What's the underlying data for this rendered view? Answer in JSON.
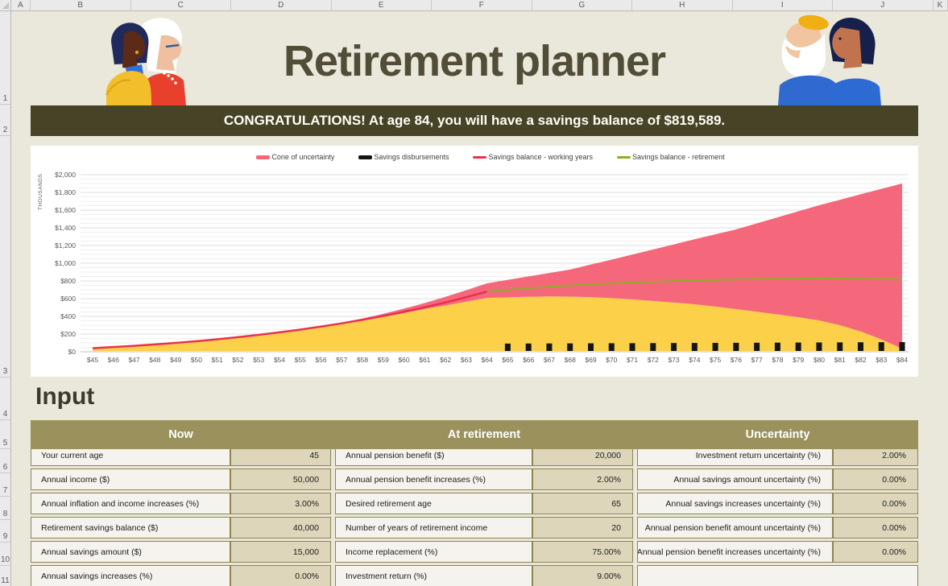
{
  "spreadsheet": {
    "columns": [
      "A",
      "B",
      "C",
      "D",
      "E",
      "F",
      "G",
      "H",
      "I",
      "J",
      "K"
    ],
    "rows": [
      "1",
      "2",
      "3",
      "4",
      "5",
      "6",
      "7",
      "8",
      "9",
      "10",
      "11"
    ]
  },
  "header": {
    "title": "Retirement planner"
  },
  "banner": {
    "text": "CONGRATULATIONS! At age 84, you will have a savings balance of $819,589."
  },
  "chart_data": {
    "type": "area",
    "title": "",
    "y_axis_title": "THOUSANDS",
    "ylim": [
      0,
      2000
    ],
    "y_major_step": 200,
    "y_minor_step": 50,
    "x_label_prefix": "$",
    "ages": [
      45,
      46,
      47,
      48,
      49,
      50,
      51,
      52,
      53,
      54,
      55,
      56,
      57,
      58,
      59,
      60,
      61,
      62,
      63,
      64,
      65,
      66,
      67,
      68,
      69,
      70,
      71,
      72,
      73,
      74,
      75,
      76,
      77,
      78,
      79,
      80,
      81,
      82,
      83,
      84
    ],
    "cone": {
      "name": "Cone of uncertainty",
      "color": "#f5687b",
      "lower": [
        40,
        53,
        67,
        83,
        100,
        119,
        141,
        164,
        189,
        216,
        246,
        278,
        313,
        351,
        392,
        436,
        483,
        523,
        566,
        608,
        615,
        622,
        625,
        623,
        617,
        606,
        591,
        574,
        556,
        536,
        510,
        482,
        452,
        422,
        390,
        354,
        300,
        230,
        140,
        35
      ],
      "upper": [
        40,
        53,
        67,
        83,
        100,
        119,
        141,
        165,
        191,
        219,
        250,
        290,
        330,
        375,
        428,
        487,
        550,
        620,
        695,
        773,
        812,
        851,
        890,
        928,
        985,
        1040,
        1098,
        1155,
        1212,
        1270,
        1326,
        1382,
        1450,
        1518,
        1586,
        1655,
        1716,
        1778,
        1840,
        1900
      ]
    },
    "base_fill": {
      "color": "#fdd049"
    },
    "disbursements": {
      "name": "Savings disbursements",
      "color": "#151515",
      "ages": [
        65,
        66,
        67,
        68,
        69,
        70,
        71,
        72,
        73,
        74,
        75,
        76,
        77,
        78,
        79,
        80,
        81,
        82,
        83,
        84
      ],
      "values": [
        37.5,
        38.3,
        39,
        39.8,
        40.6,
        41.4,
        42.2,
        43.1,
        43.9,
        44.8,
        45.7,
        46.6,
        47.5,
        48.5,
        49.4,
        50.4,
        51.4,
        52.5,
        53.5,
        54.6
      ]
    },
    "working_years": {
      "name": "Savings balance - working years",
      "color": "#e8314f",
      "ages": [
        45,
        46,
        47,
        48,
        49,
        50,
        51,
        52,
        53,
        54,
        55,
        56,
        57,
        58,
        59,
        60,
        61,
        62,
        63,
        64
      ],
      "values": [
        40,
        53,
        67,
        83,
        100,
        119,
        141,
        165,
        191,
        219,
        250,
        284,
        321,
        361,
        404,
        451,
        502,
        557,
        616,
        680
      ]
    },
    "retirement": {
      "name": "Savings balance - retirement",
      "color": "#8fae28",
      "ages": [
        64,
        65,
        66,
        67,
        68,
        69,
        70,
        71,
        72,
        73,
        74,
        75,
        76,
        77,
        78,
        79,
        80,
        81,
        82,
        83,
        84
      ],
      "values": [
        680,
        700,
        718,
        734,
        748,
        761,
        772,
        782,
        791,
        799,
        806,
        812,
        817,
        821,
        824,
        826,
        827,
        826,
        824,
        822,
        820
      ]
    },
    "legend_order": [
      "cone",
      "disbursements",
      "working_years",
      "retirement"
    ],
    "legend_swatch_heights": {
      "cone": 5,
      "disbursements": 5,
      "working_years": 3,
      "retirement": 3
    }
  },
  "input_section": {
    "heading": "Input",
    "groups": [
      {
        "header": "Now",
        "label_align": "left",
        "rows": [
          {
            "label": "Your current age",
            "value": "45"
          },
          {
            "label": "Annual income ($)",
            "value": "50,000"
          },
          {
            "label": "Annual inflation and income increases (%)",
            "value": "3.00%"
          },
          {
            "label": "Retirement savings balance ($)",
            "value": "40,000"
          },
          {
            "label": "Annual savings amount ($)",
            "value": "15,000"
          },
          {
            "label": "Annual savings increases (%)",
            "value": "0.00%"
          }
        ]
      },
      {
        "header": "At retirement",
        "label_align": "left",
        "rows": [
          {
            "label": "Annual pension benefit ($)",
            "value": "20,000"
          },
          {
            "label": "Annual pension benefit increases (%)",
            "value": "2.00%"
          },
          {
            "label": "Desired retirement age",
            "value": "65"
          },
          {
            "label": "Number of years of retirement income",
            "value": "20"
          },
          {
            "label": "Income replacement (%)",
            "value": "75.00%"
          },
          {
            "label": "Investment return (%)",
            "value": "9.00%"
          }
        ]
      },
      {
        "header": "Uncertainty",
        "label_align": "right",
        "rows": [
          {
            "label": "Investment return uncertainty (%)",
            "value": "2.00%"
          },
          {
            "label": "Annual savings amount uncertainty (%)",
            "value": "0.00%"
          },
          {
            "label": "Annual savings increases uncertainty (%)",
            "value": "0.00%"
          },
          {
            "label": "Annual pension benefit amount uncertainty (%)",
            "value": "0.00%"
          },
          {
            "label": "Annual pension benefit increases uncertainty (%)",
            "value": "0.00%"
          },
          {
            "label": "",
            "value": null
          }
        ]
      }
    ]
  }
}
